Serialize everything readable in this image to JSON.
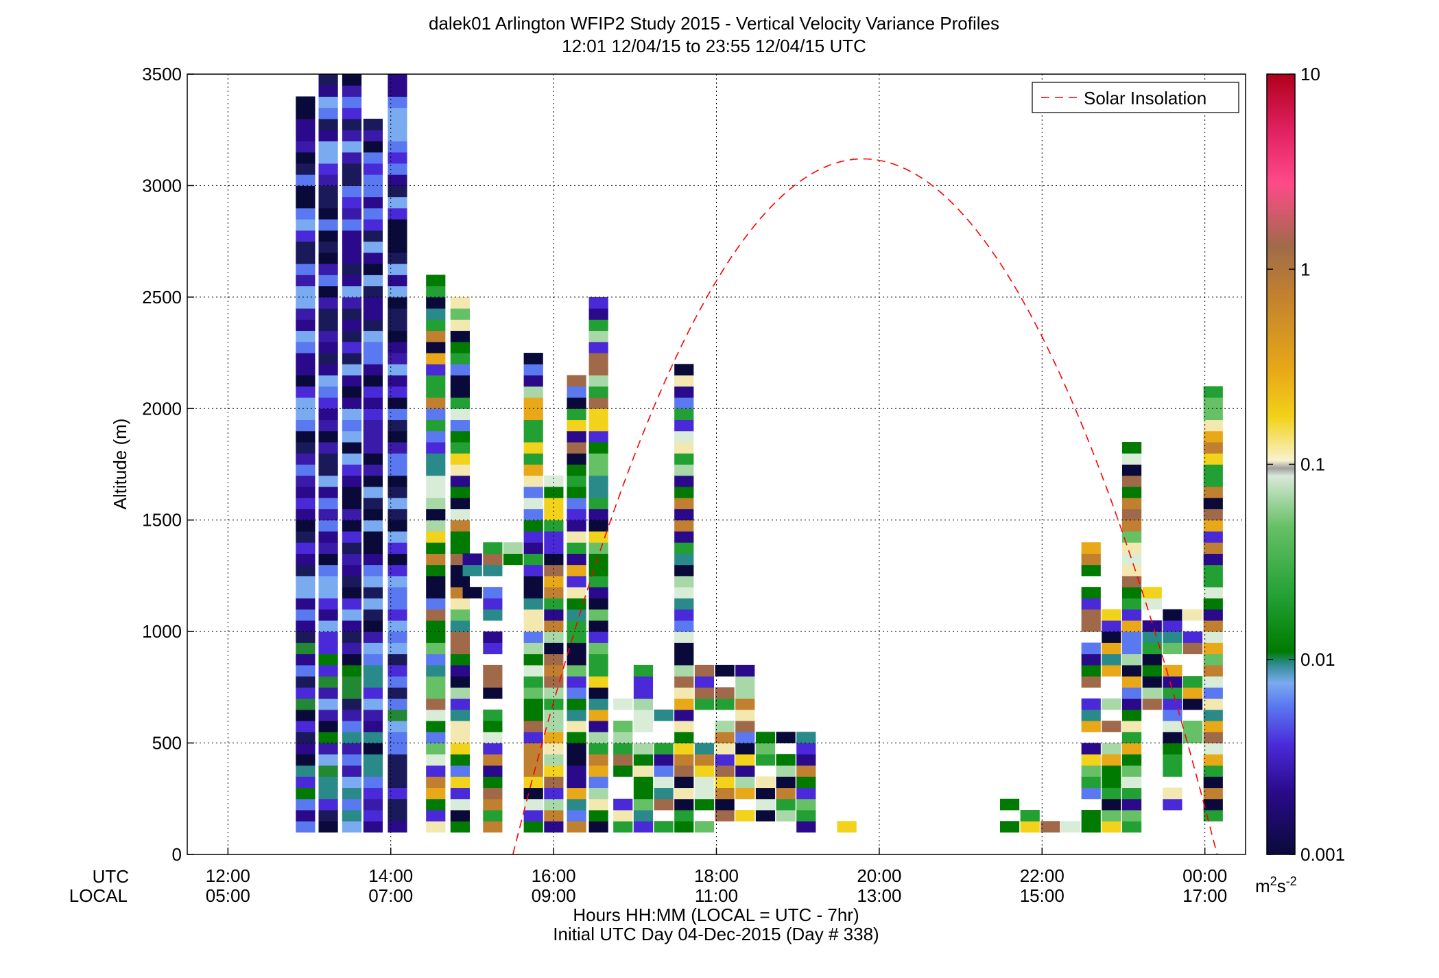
{
  "chart_data": {
    "type": "heatmap",
    "title": "dalek01 Arlington WFIP2 Study 2015 - Vertical Velocity Variance Profiles",
    "subtitle": "12:01 12/04/15 to 23:55 12/04/15  UTC",
    "ylabel": "Altitude (m)",
    "xlabel_line1": "Hours HH:MM  (LOCAL = UTC - 7hr)",
    "xlabel_line2": "Initial UTC Day 04-Dec-2015 (Day # 338)",
    "row_label_utc": "UTC",
    "row_label_local": "LOCAL",
    "xlim_hours": [
      11.5,
      24.5
    ],
    "ylim": [
      0,
      3500
    ],
    "grid": true,
    "yticks": [
      "0",
      "500",
      "1000",
      "1500",
      "2000",
      "2500",
      "3000",
      "3500"
    ],
    "ytick_values": [
      0,
      500,
      1000,
      1500,
      2000,
      2500,
      3000,
      3500
    ],
    "xticks": [
      {
        "hour": 12,
        "utc": "12:00",
        "local": "05:00"
      },
      {
        "hour": 14,
        "utc": "14:00",
        "local": "07:00"
      },
      {
        "hour": 16,
        "utc": "16:00",
        "local": "09:00"
      },
      {
        "hour": 18,
        "utc": "18:00",
        "local": "11:00"
      },
      {
        "hour": 20,
        "utc": "20:00",
        "local": "13:00"
      },
      {
        "hour": 22,
        "utc": "22:00",
        "local": "15:00"
      },
      {
        "hour": 24,
        "utc": "00:00",
        "local": "17:00"
      }
    ],
    "legend": {
      "label": "Solar Insolation",
      "position": "top-right",
      "color": "#ff0000",
      "style": "dashed"
    },
    "solar_curve": {
      "start_hour": 15.5,
      "peak_hour": 19.8,
      "end_hour": 24.15,
      "peak_altitude": 3120
    },
    "colorbar": {
      "scale": "log",
      "range": [
        0.001,
        10
      ],
      "ticks": [
        "0.001",
        "0.01",
        "0.1",
        "1",
        "10"
      ],
      "units": "m²s⁻²",
      "units_base": "m",
      "units_sup1": "2",
      "units_mid": "s",
      "units_sup2": "-2"
    },
    "cell_hours": 0.2333,
    "cell_altitude": 50,
    "columns": [
      {
        "t": 12.95,
        "a0": 100,
        "a1": 3400
      },
      {
        "t": 13.23,
        "a0": 100,
        "a1": 3500
      },
      {
        "t": 13.52,
        "a0": 100,
        "a1": 3500
      },
      {
        "t": 13.78,
        "a0": 100,
        "a1": 3300
      },
      {
        "t": 14.08,
        "a0": 100,
        "a1": 3500
      },
      {
        "t": 14.55,
        "a0": 100,
        "a1": 2600
      },
      {
        "t": 14.85,
        "a0": 100,
        "a1": 2500
      },
      {
        "t": 15.0,
        "a0": 1150,
        "a1": 1450
      },
      {
        "t": 15.25,
        "a0": 100,
        "a1": 1450
      },
      {
        "t": 15.5,
        "a0": 1300,
        "a1": 1450
      },
      {
        "t": 15.75,
        "a0": 100,
        "a1": 2250
      },
      {
        "t": 16.0,
        "a0": 100,
        "a1": 1700
      },
      {
        "t": 16.28,
        "a0": 100,
        "a1": 2150
      },
      {
        "t": 16.55,
        "a0": 100,
        "a1": 2500
      },
      {
        "t": 16.85,
        "a0": 100,
        "a1": 700
      },
      {
        "t": 17.1,
        "a0": 100,
        "a1": 850
      },
      {
        "t": 17.35,
        "a0": 100,
        "a1": 650
      },
      {
        "t": 17.6,
        "a0": 100,
        "a1": 2200
      },
      {
        "t": 17.85,
        "a0": 100,
        "a1": 850
      },
      {
        "t": 18.1,
        "a0": 100,
        "a1": 850
      },
      {
        "t": 18.35,
        "a0": 150,
        "a1": 900
      },
      {
        "t": 18.6,
        "a0": 100,
        "a1": 550
      },
      {
        "t": 18.85,
        "a0": 100,
        "a1": 550
      },
      {
        "t": 19.1,
        "a0": 100,
        "a1": 550
      },
      {
        "t": 19.35,
        "a0": 100,
        "a1": 150
      },
      {
        "t": 19.6,
        "a0": 100,
        "a1": 150
      },
      {
        "t": 21.6,
        "a0": 100,
        "a1": 300
      },
      {
        "t": 21.85,
        "a0": 100,
        "a1": 200
      },
      {
        "t": 22.1,
        "a0": 100,
        "a1": 200
      },
      {
        "t": 22.35,
        "a0": 100,
        "a1": 150
      },
      {
        "t": 22.6,
        "a0": 100,
        "a1": 1400
      },
      {
        "t": 22.85,
        "a0": 100,
        "a1": 1100
      },
      {
        "t": 23.1,
        "a0": 100,
        "a1": 1850
      },
      {
        "t": 23.35,
        "a0": 600,
        "a1": 1300
      },
      {
        "t": 23.6,
        "a0": 100,
        "a1": 1100
      },
      {
        "t": 23.85,
        "a0": 450,
        "a1": 1100
      },
      {
        "t": 24.1,
        "a0": 150,
        "a1": 2100
      }
    ]
  }
}
